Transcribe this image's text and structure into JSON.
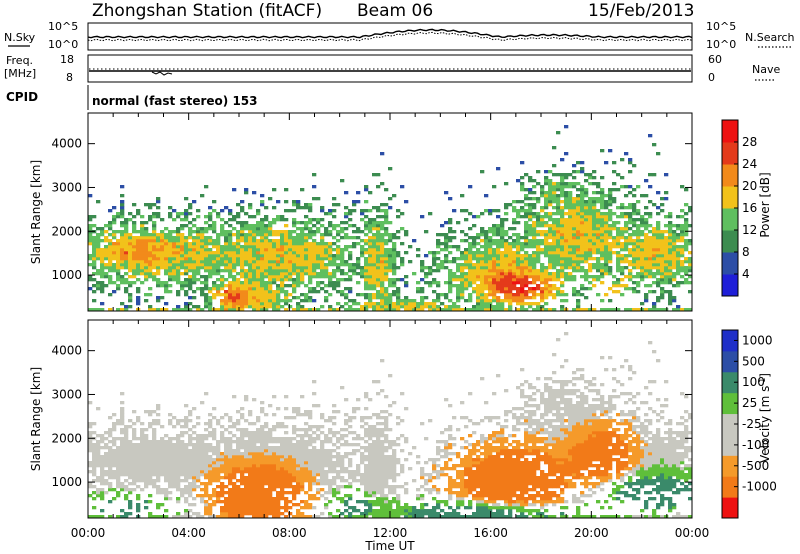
{
  "header": {
    "station": "Zhongshan Station (fitACF)",
    "beam": "Beam 06",
    "date": "15/Feb/2013"
  },
  "panels": {
    "nsky_label": "N.Sky",
    "nsearch_label": "N.Search",
    "nsky_ticks": [
      "10^5",
      "10^0"
    ],
    "nsearch_ticks": [
      "10^5",
      "10^0"
    ],
    "freq_label_1": "Freq.",
    "freq_label_2": "[MHz]",
    "freq_ticks": [
      "18",
      "8"
    ],
    "nave_label": "Nave",
    "nave_ticks": [
      "60",
      "0"
    ],
    "cpid_label": "CPID",
    "cpid_text": "normal (fast stereo) 153"
  },
  "colors": {
    "power": [
      "#1f1fd8",
      "#2c4ea6",
      "#3c8c50",
      "#5fbf5f",
      "#f2c21b",
      "#f28a1b",
      "#e43a1b",
      "#ee1111"
    ],
    "velocity": [
      "#ee1111",
      "#f27a18",
      "#f59a2a",
      "#c8c8c0",
      "#c8c8c0",
      "#5fbf3a",
      "#3a8a6a",
      "#2c4ea6",
      "#1f2fc8"
    ]
  },
  "chart_data": [
    {
      "type": "heatmap",
      "name": "power",
      "ylabel": "Slant Range [km]",
      "xlabel": "Time UT",
      "ylim": [
        180,
        4700
      ],
      "yticks": [
        1000,
        2000,
        3000,
        4000
      ],
      "xticks": [
        "00:00",
        "04:00",
        "08:00",
        "12:00",
        "16:00",
        "20:00",
        "00:00"
      ],
      "colorbar": {
        "label": "Power [dB]",
        "ticks": [
          "4",
          "8",
          "12",
          "16",
          "20",
          "24",
          "28"
        ]
      }
    },
    {
      "type": "heatmap",
      "name": "velocity",
      "ylabel": "Slant Range [km]",
      "xlabel": "Time UT",
      "ylim": [
        180,
        4700
      ],
      "yticks": [
        1000,
        2000,
        3000,
        4000
      ],
      "xticks": [
        "00:00",
        "04:00",
        "08:00",
        "12:00",
        "16:00",
        "20:00",
        "00:00"
      ],
      "colorbar": {
        "label": "Velocity [m s^-1]",
        "ticks": [
          "1000",
          "500",
          "100",
          "25",
          "-25",
          "-100",
          "-500",
          "-1000"
        ]
      }
    }
  ],
  "time_axis_label": "Time UT"
}
